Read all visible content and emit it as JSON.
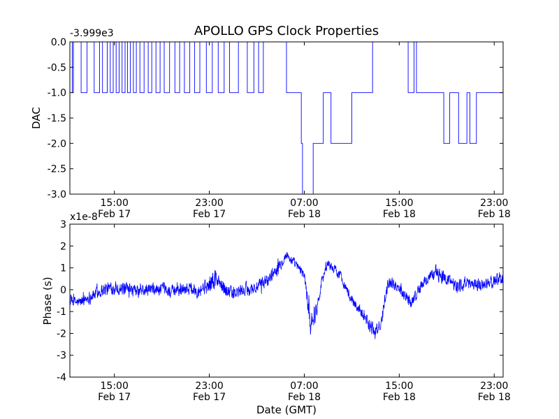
{
  "figure_title": "APOLLO GPS Clock Properties",
  "colors": {
    "line": "#0000ff",
    "axes": "#000000",
    "background": "#ffffff"
  },
  "chart_data": [
    {
      "type": "line",
      "title": "APOLLO GPS Clock Properties",
      "ylabel": "DAC",
      "xlabel": "",
      "offset_label": "-3.999e3",
      "xlim": [
        "2012-02-17T11:15:00Z",
        "2012-02-18T23:45:00Z"
      ],
      "ylim": [
        -3.0,
        0.0
      ],
      "grid": false,
      "xticks": [
        {
          "t": "2012-02-17T15:00:00Z",
          "time": "15:00",
          "date": "Feb 17"
        },
        {
          "t": "2012-02-17T23:00:00Z",
          "time": "23:00",
          "date": "Feb 17"
        },
        {
          "t": "2012-02-18T07:00:00Z",
          "time": "07:00",
          "date": "Feb 18"
        },
        {
          "t": "2012-02-18T15:00:00Z",
          "time": "15:00",
          "date": "Feb 18"
        },
        {
          "t": "2012-02-18T23:00:00Z",
          "time": "23:00",
          "date": "Feb 18"
        }
      ],
      "yticks": [
        "0.0",
        "-0.5",
        "-1.0",
        "-1.5",
        "-2.0",
        "-2.5",
        "-3.0"
      ],
      "series": [
        {
          "x": [
            "2012-02-17T11:15:00Z",
            "2012-02-17T11:27:00Z",
            "2012-02-17T11:33:00Z",
            "2012-02-17T12:12:00Z",
            "2012-02-17T12:42:00Z",
            "2012-02-17T13:18:00Z",
            "2012-02-17T13:45:00Z",
            "2012-02-17T14:00:00Z",
            "2012-02-17T14:24:00Z",
            "2012-02-17T14:39:00Z",
            "2012-02-17T14:54:00Z",
            "2012-02-17T15:09:00Z",
            "2012-02-17T15:24:00Z",
            "2012-02-17T15:39:00Z",
            "2012-02-17T15:54:00Z",
            "2012-02-17T16:06:00Z",
            "2012-02-17T16:21:00Z",
            "2012-02-17T16:36:00Z",
            "2012-02-17T16:51:00Z",
            "2012-02-17T17:09:00Z",
            "2012-02-17T17:30:00Z",
            "2012-02-17T17:51:00Z",
            "2012-02-17T18:09:00Z",
            "2012-02-17T18:30:00Z",
            "2012-02-17T18:51:00Z",
            "2012-02-17T19:12:00Z",
            "2012-02-17T19:39:00Z",
            "2012-02-17T20:06:00Z",
            "2012-02-17T20:30:00Z",
            "2012-02-17T20:54:00Z",
            "2012-02-17T21:21:00Z",
            "2012-02-17T21:45:00Z",
            "2012-02-17T22:12:00Z",
            "2012-02-17T22:45:00Z",
            "2012-02-17T23:15:00Z",
            "2012-02-17T23:45:00Z",
            "2012-02-18T00:15:00Z",
            "2012-02-18T00:42:00Z",
            "2012-02-18T01:27:00Z",
            "2012-02-18T02:12:00Z",
            "2012-02-18T02:45:00Z",
            "2012-02-18T03:09:00Z",
            "2012-02-18T03:33:00Z",
            "2012-02-18T05:30:00Z",
            "2012-02-18T06:45:00Z",
            "2012-02-18T06:51:00Z",
            "2012-02-18T07:45:00Z",
            "2012-02-18T08:36:00Z",
            "2012-02-18T09:15:00Z",
            "2012-02-18T11:00:00Z",
            "2012-02-18T12:45:00Z",
            "2012-02-18T15:45:00Z",
            "2012-02-18T16:15:00Z",
            "2012-02-18T16:27:00Z",
            "2012-02-18T18:45:00Z",
            "2012-02-18T19:15:00Z",
            "2012-02-18T20:00:00Z",
            "2012-02-18T20:42:00Z",
            "2012-02-18T20:57:00Z",
            "2012-02-18T21:30:00Z",
            "2012-02-18T23:45:00Z"
          ],
          "y": [
            0.0,
            -1.0,
            0.0,
            -1.0,
            0.0,
            -1.0,
            0.0,
            -1.0,
            0.0,
            -1.0,
            0.0,
            -1.0,
            0.0,
            -1.0,
            0.0,
            -1.0,
            0.0,
            -1.0,
            0.0,
            -1.0,
            0.0,
            -1.0,
            0.0,
            -1.0,
            0.0,
            -1.0,
            0.0,
            -1.0,
            0.0,
            -1.0,
            0.0,
            -1.0,
            0.0,
            -1.0,
            0.0,
            -1.0,
            0.0,
            -1.0,
            0.0,
            -1.0,
            0.0,
            -1.0,
            0.0,
            -1.0,
            -2.0,
            -3.0,
            -2.0,
            -1.0,
            -2.0,
            -1.0,
            0.0,
            -1.0,
            0.0,
            -1.0,
            -2.0,
            -1.0,
            -2.0,
            -1.0,
            -2.0,
            -1.0,
            -2.0
          ]
        }
      ]
    },
    {
      "type": "line",
      "title": "",
      "ylabel": "Phase (s)",
      "xlabel": "Date (GMT)",
      "offset_label": "x1e-8",
      "xlim": [
        "2012-02-17T11:15:00Z",
        "2012-02-18T23:45:00Z"
      ],
      "ylim": [
        -4,
        3
      ],
      "grid": false,
      "xticks": [
        {
          "t": "2012-02-17T15:00:00Z",
          "time": "15:00",
          "date": "Feb 17"
        },
        {
          "t": "2012-02-17T23:00:00Z",
          "time": "23:00",
          "date": "Feb 17"
        },
        {
          "t": "2012-02-18T07:00:00Z",
          "time": "07:00",
          "date": "Feb 18"
        },
        {
          "t": "2012-02-18T15:00:00Z",
          "time": "15:00",
          "date": "Feb 18"
        },
        {
          "t": "2012-02-18T23:00:00Z",
          "time": "23:00",
          "date": "Feb 18"
        }
      ],
      "yticks": [
        "3",
        "2",
        "1",
        "0",
        "-1",
        "-2",
        "-3",
        "-4"
      ],
      "series": [
        {
          "x": [
            "2012-02-17T11:15:00Z",
            "2012-02-17T12:00:00Z",
            "2012-02-17T13:00:00Z",
            "2012-02-17T14:00:00Z",
            "2012-02-17T15:00:00Z",
            "2012-02-17T16:00:00Z",
            "2012-02-17T17:00:00Z",
            "2012-02-17T18:00:00Z",
            "2012-02-17T19:00:00Z",
            "2012-02-17T20:00:00Z",
            "2012-02-17T21:00:00Z",
            "2012-02-17T22:00:00Z",
            "2012-02-17T23:00:00Z",
            "2012-02-17T23:30:00Z",
            "2012-02-18T00:00:00Z",
            "2012-02-18T01:00:00Z",
            "2012-02-18T02:00:00Z",
            "2012-02-18T03:00:00Z",
            "2012-02-18T04:00:00Z",
            "2012-02-18T05:00:00Z",
            "2012-02-18T05:30:00Z",
            "2012-02-18T06:00:00Z",
            "2012-02-18T06:30:00Z",
            "2012-02-18T07:00:00Z",
            "2012-02-18T07:30:00Z",
            "2012-02-18T08:00:00Z",
            "2012-02-18T08:30:00Z",
            "2012-02-18T09:00:00Z",
            "2012-02-18T10:00:00Z",
            "2012-02-18T11:00:00Z",
            "2012-02-18T12:00:00Z",
            "2012-02-18T12:30:00Z",
            "2012-02-18T13:00:00Z",
            "2012-02-18T13:30:00Z",
            "2012-02-18T14:00:00Z",
            "2012-02-18T15:00:00Z",
            "2012-02-18T16:00:00Z",
            "2012-02-18T17:00:00Z",
            "2012-02-18T18:00:00Z",
            "2012-02-18T19:00:00Z",
            "2012-02-18T20:00:00Z",
            "2012-02-18T21:00:00Z",
            "2012-02-18T22:00:00Z",
            "2012-02-18T23:00:00Z",
            "2012-02-18T23:45:00Z"
          ],
          "y": [
            -0.5,
            -0.6,
            -0.3,
            0.0,
            0.1,
            0.0,
            -0.1,
            0.0,
            0.0,
            -0.1,
            0.1,
            0.0,
            0.2,
            0.5,
            0.2,
            -0.2,
            0.0,
            0.1,
            0.5,
            1.2,
            1.6,
            1.3,
            1.0,
            0.7,
            -1.5,
            -1.0,
            0.5,
            1.2,
            0.7,
            -0.5,
            -1.1,
            -1.6,
            -2.0,
            -1.5,
            0.4,
            0.1,
            -0.6,
            0.3,
            0.8,
            0.5,
            0.2,
            0.3,
            0.2,
            0.4,
            0.6
          ],
          "noise_amplitude": [
            0.35,
            0.35,
            0.4,
            0.4,
            0.4,
            0.4,
            0.4,
            0.4,
            0.4,
            0.4,
            0.4,
            0.45,
            0.5,
            0.8,
            0.5,
            0.4,
            0.4,
            0.4,
            0.4,
            0.35,
            0.3,
            0.3,
            0.3,
            0.3,
            0.8,
            0.5,
            0.3,
            0.3,
            0.3,
            0.3,
            0.35,
            0.45,
            0.45,
            0.45,
            0.35,
            0.35,
            0.35,
            0.35,
            0.45,
            0.4,
            0.4,
            0.4,
            0.4,
            0.4,
            0.5
          ]
        }
      ]
    }
  ]
}
